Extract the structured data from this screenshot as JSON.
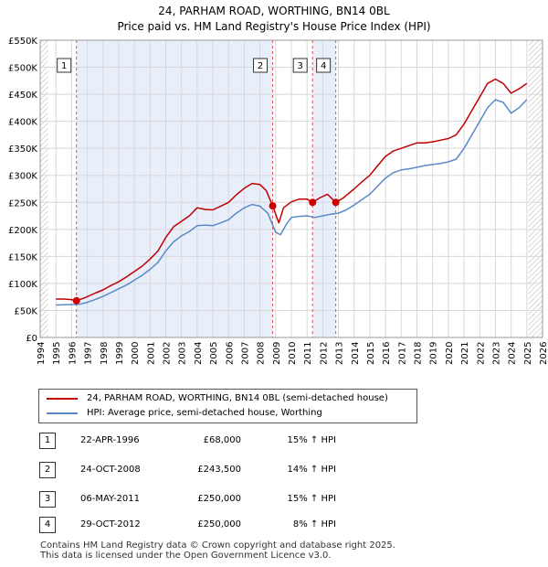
{
  "chart_data": {
    "type": "line",
    "title": "24, PARHAM ROAD, WORTHING, BN14 0BL",
    "subtitle": "Price paid vs. HM Land Registry's House Price Index (HPI)",
    "xlim": [
      1994,
      2026
    ],
    "ylim": [
      0,
      550000
    ],
    "x_ticks": [
      1994,
      1995,
      1996,
      1997,
      1998,
      1999,
      2000,
      2001,
      2002,
      2003,
      2004,
      2005,
      2006,
      2007,
      2008,
      2009,
      2010,
      2011,
      2012,
      2013,
      2014,
      2015,
      2016,
      2017,
      2018,
      2019,
      2020,
      2021,
      2022,
      2023,
      2024,
      2025,
      2026
    ],
    "y_ticks": [
      {
        "value": 0,
        "label": "£0"
      },
      {
        "value": 50000,
        "label": "£50K"
      },
      {
        "value": 100000,
        "label": "£100K"
      },
      {
        "value": 150000,
        "label": "£150K"
      },
      {
        "value": 200000,
        "label": "£200K"
      },
      {
        "value": 250000,
        "label": "£250K"
      },
      {
        "value": 300000,
        "label": "£300K"
      },
      {
        "value": 350000,
        "label": "£350K"
      },
      {
        "value": 400000,
        "label": "£400K"
      },
      {
        "value": 450000,
        "label": "£450K"
      },
      {
        "value": 500000,
        "label": "£500K"
      },
      {
        "value": 550000,
        "label": "£550K"
      }
    ],
    "grid": true,
    "shaded_ranges": [
      [
        1996.31,
        2008.81
      ],
      [
        2011.35,
        2012.83
      ]
    ],
    "hatched_ranges": [
      [
        1994.0,
        1994.5
      ],
      [
        2025.1,
        2026.0
      ]
    ],
    "series": [
      {
        "name": "24, PARHAM ROAD, WORTHING, BN14 0BL (semi-detached house)",
        "color": "#c00000",
        "x": [
          1995.0,
          1995.5,
          1996.0,
          1996.31,
          1996.8,
          1997.5,
          1998.0,
          1998.5,
          1999.0,
          1999.5,
          2000.0,
          2000.5,
          2001.0,
          2001.5,
          2002.0,
          2002.5,
          2003.0,
          2003.5,
          2004.0,
          2004.5,
          2005.0,
          2005.5,
          2006.0,
          2006.5,
          2007.0,
          2007.5,
          2008.0,
          2008.4,
          2008.81,
          2009.2,
          2009.5,
          2010.0,
          2010.5,
          2011.0,
          2011.35,
          2011.8,
          2012.3,
          2012.83,
          2013.3,
          2014.0,
          2014.5,
          2015.0,
          2015.5,
          2016.0,
          2016.5,
          2017.0,
          2017.5,
          2018.0,
          2018.5,
          2019.0,
          2019.5,
          2020.0,
          2020.5,
          2021.0,
          2021.5,
          2022.0,
          2022.5,
          2023.0,
          2023.5,
          2024.0,
          2024.5,
          2025.0
        ],
        "values": [
          71000,
          71000,
          70000,
          68000,
          73000,
          82000,
          88000,
          96000,
          103000,
          112000,
          122000,
          132000,
          145000,
          160000,
          185000,
          205000,
          215000,
          225000,
          240000,
          237000,
          236000,
          243000,
          250000,
          264000,
          276000,
          285000,
          283000,
          272000,
          243500,
          212000,
          240000,
          251000,
          256000,
          256000,
          250000,
          258000,
          265000,
          250000,
          258000,
          275000,
          288000,
          300000,
          318000,
          335000,
          345000,
          350000,
          355000,
          360000,
          360000,
          362000,
          365000,
          368000,
          375000,
          395000,
          420000,
          445000,
          470000,
          478000,
          470000,
          452000,
          460000,
          470000
        ]
      },
      {
        "name": "HPI: Average price, semi-detached house, Worthing",
        "color": "#5b8ac8",
        "x": [
          1995.0,
          1995.5,
          1996.0,
          1996.5,
          1997.0,
          1997.5,
          1998.0,
          1998.5,
          1999.0,
          1999.5,
          2000.0,
          2000.5,
          2001.0,
          2001.5,
          2002.0,
          2002.5,
          2003.0,
          2003.5,
          2004.0,
          2004.5,
          2005.0,
          2005.5,
          2006.0,
          2006.5,
          2007.0,
          2007.5,
          2008.0,
          2008.5,
          2009.0,
          2009.3,
          2009.7,
          2010.0,
          2010.5,
          2011.0,
          2011.5,
          2012.0,
          2012.5,
          2013.0,
          2013.5,
          2014.0,
          2014.5,
          2015.0,
          2015.5,
          2016.0,
          2016.5,
          2017.0,
          2017.5,
          2018.0,
          2018.5,
          2019.0,
          2019.5,
          2020.0,
          2020.5,
          2021.0,
          2021.5,
          2022.0,
          2022.5,
          2023.0,
          2023.5,
          2024.0,
          2024.5,
          2025.0
        ],
        "values": [
          60000,
          60500,
          61000,
          61500,
          65000,
          70000,
          76000,
          83000,
          90000,
          97000,
          106000,
          115000,
          126000,
          139000,
          160000,
          177000,
          188000,
          196000,
          207000,
          208000,
          207000,
          212000,
          218000,
          230000,
          240000,
          246000,
          243000,
          230000,
          195000,
          190000,
          210000,
          222000,
          224000,
          225000,
          222000,
          225000,
          228000,
          230000,
          236000,
          245000,
          255000,
          265000,
          280000,
          295000,
          305000,
          310000,
          312000,
          315000,
          318000,
          320000,
          322000,
          325000,
          330000,
          350000,
          375000,
          400000,
          425000,
          440000,
          435000,
          415000,
          425000,
          440000
        ]
      }
    ],
    "annotations": [
      {
        "label": "1",
        "x": 1996.31,
        "value": 68000
      },
      {
        "label": "2",
        "x": 2008.81,
        "value": 243500
      },
      {
        "label": "3",
        "x": 2011.35,
        "value": 250000
      },
      {
        "label": "4",
        "x": 2012.83,
        "value": 250000
      }
    ]
  },
  "legend": [
    {
      "label": "24, PARHAM ROAD, WORTHING, BN14 0BL (semi-detached house)",
      "color": "#c00000"
    },
    {
      "label": "HPI: Average price, semi-detached house, Worthing",
      "color": "#5b8ac8"
    }
  ],
  "sales": [
    {
      "num": "1",
      "date": "22-APR-1996",
      "price": "£68,000",
      "hpi": "15% ↑ HPI"
    },
    {
      "num": "2",
      "date": "24-OCT-2008",
      "price": "£243,500",
      "hpi": "14% ↑ HPI"
    },
    {
      "num": "3",
      "date": "06-MAY-2011",
      "price": "£250,000",
      "hpi": "15% ↑ HPI"
    },
    {
      "num": "4",
      "date": "29-OCT-2012",
      "price": "£250,000",
      "hpi": "8% ↑ HPI"
    }
  ],
  "footer": {
    "line1": "Contains HM Land Registry data © Crown copyright and database right 2025.",
    "line2": "This data is licensed under the Open Government Licence v3.0."
  }
}
